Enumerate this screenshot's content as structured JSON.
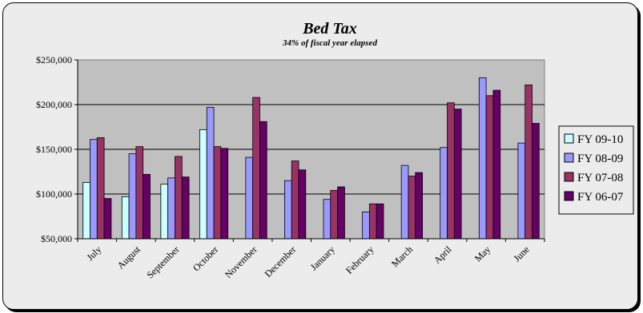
{
  "chart_data": {
    "type": "bar",
    "title": "Bed Tax",
    "subtitle": "34% of fiscal year elapsed",
    "xlabel": "",
    "ylabel": "",
    "categories": [
      "July",
      "August",
      "September",
      "October",
      "November",
      "December",
      "January",
      "February",
      "March",
      "April",
      "May",
      "June"
    ],
    "yticks": [
      "$50,000",
      "$100,000",
      "$150,000",
      "$200,000",
      "$250,000"
    ],
    "ytick_values": [
      50000,
      100000,
      150000,
      200000,
      250000
    ],
    "ylim": [
      50000,
      250000
    ],
    "grid": true,
    "legend_position": "right",
    "series": [
      {
        "name": "FY 09-10",
        "color": "#ccffff",
        "values": [
          113000,
          97000,
          111000,
          172000,
          null,
          null,
          null,
          null,
          null,
          null,
          null,
          null
        ]
      },
      {
        "name": "FY 08-09",
        "color": "#9999ff",
        "values": [
          161000,
          145000,
          118000,
          197000,
          141000,
          115000,
          94000,
          80000,
          132000,
          152000,
          230000,
          157000
        ]
      },
      {
        "name": "FY 07-08",
        "color": "#993366",
        "values": [
          163000,
          153000,
          142000,
          153000,
          208000,
          137000,
          104000,
          89000,
          120000,
          202000,
          210000,
          222000
        ]
      },
      {
        "name": "FY 06-07",
        "color": "#660066",
        "values": [
          95000,
          122000,
          119000,
          151000,
          181000,
          127000,
          108000,
          89000,
          124000,
          195000,
          216000,
          179000
        ]
      }
    ]
  }
}
